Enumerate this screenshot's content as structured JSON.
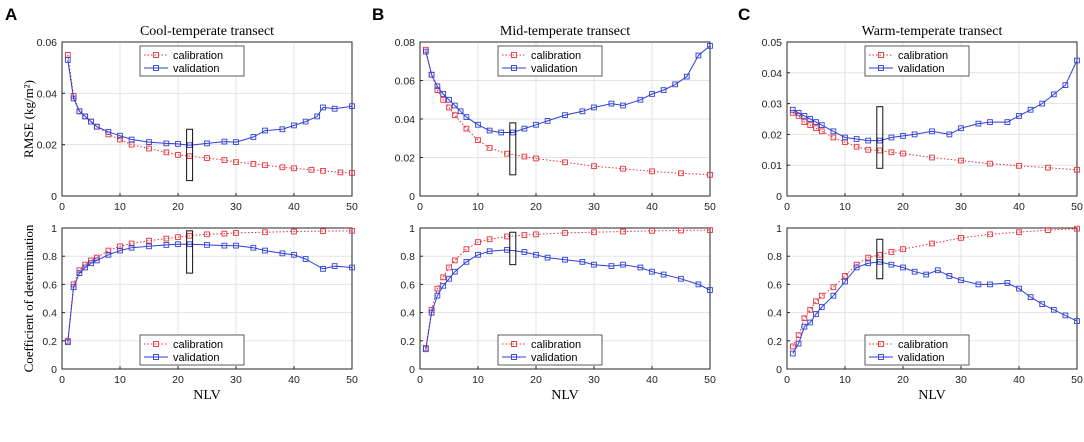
{
  "figure": {
    "xlabel": "NLV",
    "legend": {
      "calibration": "calibration",
      "validation": "validation"
    },
    "colors": {
      "calibration": "#e8303a",
      "validation": "#2f3fd6"
    }
  },
  "chart_data": [
    {
      "id": "A-rmse",
      "type": "line",
      "panel_letter": "A",
      "title": "Cool-temperate transect",
      "ylabel": "RMSE (kg/m²)",
      "xlabel": "",
      "xlim": [
        0,
        50
      ],
      "ylim": [
        0,
        0.06
      ],
      "xticks": [
        "0",
        "10",
        "20",
        "30",
        "40",
        "50"
      ],
      "yticks": [
        "0",
        "0.02",
        "0.04",
        "0.06"
      ],
      "legend_position": "top-center",
      "box": {
        "x": 22,
        "y_low": 0.006,
        "y_high": 0.026
      },
      "series": [
        {
          "name": "calibration",
          "x": [
            1,
            2,
            3,
            4,
            5,
            6,
            8,
            10,
            12,
            15,
            18,
            20,
            22,
            25,
            28,
            30,
            33,
            35,
            38,
            40,
            43,
            45,
            48,
            50
          ],
          "values": [
            0.055,
            0.039,
            0.033,
            0.031,
            0.029,
            0.027,
            0.024,
            0.022,
            0.02,
            0.0185,
            0.017,
            0.016,
            0.0155,
            0.0148,
            0.014,
            0.0132,
            0.0125,
            0.012,
            0.0112,
            0.0108,
            0.0102,
            0.0098,
            0.0092,
            0.009
          ]
        },
        {
          "name": "validation",
          "x": [
            1,
            2,
            3,
            4,
            5,
            6,
            8,
            10,
            12,
            15,
            18,
            20,
            22,
            25,
            28,
            30,
            33,
            35,
            38,
            40,
            42,
            44,
            45,
            47,
            50
          ],
          "values": [
            0.053,
            0.038,
            0.033,
            0.031,
            0.029,
            0.027,
            0.025,
            0.0235,
            0.022,
            0.021,
            0.0205,
            0.0203,
            0.0198,
            0.0205,
            0.0212,
            0.021,
            0.023,
            0.0255,
            0.026,
            0.0275,
            0.029,
            0.031,
            0.0345,
            0.034,
            0.035
          ]
        }
      ]
    },
    {
      "id": "B-rmse",
      "type": "line",
      "panel_letter": "B",
      "title": "Mid-temperate transect",
      "ylabel": "",
      "xlabel": "",
      "xlim": [
        0,
        50
      ],
      "ylim": [
        0,
        0.08
      ],
      "xticks": [
        "0",
        "10",
        "20",
        "30",
        "40",
        "50"
      ],
      "yticks": [
        "0",
        "0.02",
        "0.04",
        "0.06",
        "0.08"
      ],
      "legend_position": "top-center",
      "box": {
        "x": 16,
        "y_low": 0.011,
        "y_high": 0.038
      },
      "series": [
        {
          "name": "calibration",
          "x": [
            1,
            2,
            3,
            4,
            5,
            6,
            8,
            10,
            12,
            15,
            18,
            20,
            25,
            30,
            35,
            40,
            45,
            50
          ],
          "values": [
            0.076,
            0.063,
            0.055,
            0.05,
            0.046,
            0.042,
            0.035,
            0.029,
            0.025,
            0.022,
            0.0205,
            0.0195,
            0.0175,
            0.0155,
            0.0142,
            0.0128,
            0.0118,
            0.011
          ]
        },
        {
          "name": "validation",
          "x": [
            1,
            2,
            3,
            4,
            5,
            6,
            7,
            8,
            10,
            12,
            14,
            16,
            18,
            20,
            22,
            25,
            28,
            30,
            33,
            35,
            38,
            40,
            42,
            44,
            46,
            48,
            50
          ],
          "values": [
            0.075,
            0.063,
            0.057,
            0.053,
            0.05,
            0.047,
            0.044,
            0.041,
            0.037,
            0.034,
            0.033,
            0.033,
            0.035,
            0.037,
            0.039,
            0.042,
            0.044,
            0.046,
            0.048,
            0.047,
            0.05,
            0.053,
            0.055,
            0.058,
            0.062,
            0.073,
            0.078
          ]
        }
      ]
    },
    {
      "id": "C-rmse",
      "type": "line",
      "panel_letter": "C",
      "title": "Warm-temperate transect",
      "ylabel": "",
      "xlabel": "",
      "xlim": [
        0,
        50
      ],
      "ylim": [
        0,
        0.05
      ],
      "xticks": [
        "0",
        "10",
        "20",
        "30",
        "40",
        "50"
      ],
      "yticks": [
        "0",
        "0.01",
        "0.02",
        "0.03",
        "0.04",
        "0.05"
      ],
      "legend_position": "top-center",
      "box": {
        "x": 16,
        "y_low": 0.009,
        "y_high": 0.029
      },
      "series": [
        {
          "name": "calibration",
          "x": [
            1,
            2,
            3,
            4,
            5,
            6,
            8,
            10,
            12,
            14,
            16,
            18,
            20,
            25,
            30,
            35,
            40,
            45,
            50
          ],
          "values": [
            0.027,
            0.026,
            0.024,
            0.023,
            0.022,
            0.021,
            0.019,
            0.0175,
            0.016,
            0.015,
            0.0148,
            0.0142,
            0.0138,
            0.0125,
            0.0115,
            0.0105,
            0.0098,
            0.0092,
            0.0085
          ]
        },
        {
          "name": "validation",
          "x": [
            1,
            2,
            3,
            4,
            5,
            6,
            8,
            10,
            12,
            14,
            16,
            18,
            20,
            22,
            25,
            28,
            30,
            33,
            35,
            38,
            40,
            42,
            44,
            46,
            48,
            50
          ],
          "values": [
            0.028,
            0.027,
            0.026,
            0.025,
            0.024,
            0.023,
            0.021,
            0.019,
            0.0185,
            0.018,
            0.018,
            0.019,
            0.0195,
            0.02,
            0.021,
            0.02,
            0.022,
            0.0235,
            0.024,
            0.024,
            0.026,
            0.028,
            0.03,
            0.033,
            0.036,
            0.044
          ]
        }
      ]
    },
    {
      "id": "A-r2",
      "type": "line",
      "panel_letter": "",
      "title": "",
      "ylabel": "Coefficient of determination",
      "xlabel": "NLV",
      "xlim": [
        0,
        50
      ],
      "ylim": [
        0,
        1
      ],
      "xticks": [
        "0",
        "10",
        "20",
        "30",
        "40",
        "50"
      ],
      "yticks": [
        "0",
        "0.2",
        "0.4",
        "0.6",
        "0.8",
        "1"
      ],
      "legend_position": "bottom-center",
      "box": {
        "x": 22,
        "y_low": 0.68,
        "y_high": 0.98
      },
      "series": [
        {
          "name": "calibration",
          "x": [
            1,
            2,
            3,
            4,
            5,
            6,
            8,
            10,
            12,
            15,
            18,
            20,
            22,
            25,
            28,
            30,
            35,
            40,
            45,
            50
          ],
          "values": [
            0.2,
            0.6,
            0.7,
            0.74,
            0.77,
            0.79,
            0.84,
            0.87,
            0.89,
            0.91,
            0.925,
            0.935,
            0.945,
            0.955,
            0.96,
            0.965,
            0.97,
            0.975,
            0.978,
            0.98
          ]
        },
        {
          "name": "validation",
          "x": [
            1,
            2,
            3,
            4,
            5,
            6,
            8,
            10,
            12,
            15,
            18,
            20,
            22,
            25,
            28,
            30,
            33,
            35,
            38,
            40,
            42,
            45,
            47,
            50
          ],
          "values": [
            0.19,
            0.58,
            0.68,
            0.72,
            0.75,
            0.77,
            0.81,
            0.84,
            0.86,
            0.87,
            0.88,
            0.885,
            0.885,
            0.88,
            0.875,
            0.875,
            0.86,
            0.84,
            0.82,
            0.81,
            0.78,
            0.71,
            0.73,
            0.72
          ]
        }
      ]
    },
    {
      "id": "B-r2",
      "type": "line",
      "panel_letter": "",
      "title": "",
      "ylabel": "",
      "xlabel": "NLV",
      "xlim": [
        0,
        50
      ],
      "ylim": [
        0,
        1
      ],
      "xticks": [
        "0",
        "10",
        "20",
        "30",
        "40",
        "50"
      ],
      "yticks": [
        "0",
        "0.2",
        "0.4",
        "0.6",
        "0.8",
        "1"
      ],
      "legend_position": "bottom-center",
      "box": {
        "x": 16,
        "y_low": 0.74,
        "y_high": 0.97
      },
      "series": [
        {
          "name": "calibration",
          "x": [
            1,
            2,
            3,
            4,
            5,
            6,
            8,
            10,
            12,
            15,
            18,
            20,
            25,
            30,
            35,
            40,
            45,
            50
          ],
          "values": [
            0.15,
            0.42,
            0.57,
            0.65,
            0.72,
            0.77,
            0.85,
            0.9,
            0.92,
            0.94,
            0.95,
            0.955,
            0.965,
            0.97,
            0.975,
            0.98,
            0.982,
            0.985
          ]
        },
        {
          "name": "validation",
          "x": [
            1,
            2,
            3,
            4,
            5,
            6,
            8,
            10,
            12,
            15,
            18,
            20,
            22,
            25,
            28,
            30,
            33,
            35,
            38,
            40,
            42,
            45,
            48,
            50
          ],
          "values": [
            0.14,
            0.4,
            0.52,
            0.59,
            0.64,
            0.69,
            0.76,
            0.81,
            0.835,
            0.845,
            0.83,
            0.81,
            0.79,
            0.775,
            0.76,
            0.74,
            0.73,
            0.74,
            0.72,
            0.69,
            0.67,
            0.64,
            0.6,
            0.56
          ]
        }
      ]
    },
    {
      "id": "C-r2",
      "type": "line",
      "panel_letter": "",
      "title": "",
      "ylabel": "",
      "xlabel": "NLV",
      "xlim": [
        0,
        50
      ],
      "ylim": [
        0,
        1
      ],
      "xticks": [
        "0",
        "10",
        "20",
        "30",
        "40",
        "50"
      ],
      "yticks": [
        "0",
        "0.2",
        "0.4",
        "0.6",
        "0.8",
        "1"
      ],
      "legend_position": "bottom-center",
      "box": {
        "x": 16,
        "y_low": 0.64,
        "y_high": 0.92
      },
      "series": [
        {
          "name": "calibration",
          "x": [
            1,
            2,
            3,
            4,
            5,
            6,
            8,
            10,
            12,
            14,
            16,
            18,
            20,
            25,
            30,
            35,
            40,
            45,
            50
          ],
          "values": [
            0.16,
            0.24,
            0.36,
            0.42,
            0.48,
            0.52,
            0.58,
            0.66,
            0.74,
            0.79,
            0.81,
            0.83,
            0.85,
            0.89,
            0.93,
            0.955,
            0.97,
            0.985,
            0.995
          ]
        },
        {
          "name": "validation",
          "x": [
            1,
            2,
            3,
            4,
            5,
            6,
            8,
            10,
            12,
            14,
            16,
            18,
            20,
            22,
            24,
            26,
            28,
            30,
            33,
            35,
            38,
            40,
            42,
            44,
            46,
            48,
            50
          ],
          "values": [
            0.11,
            0.18,
            0.3,
            0.33,
            0.39,
            0.44,
            0.52,
            0.62,
            0.72,
            0.75,
            0.76,
            0.74,
            0.72,
            0.69,
            0.67,
            0.7,
            0.66,
            0.63,
            0.6,
            0.6,
            0.61,
            0.57,
            0.51,
            0.46,
            0.42,
            0.38,
            0.34
          ]
        }
      ]
    }
  ]
}
